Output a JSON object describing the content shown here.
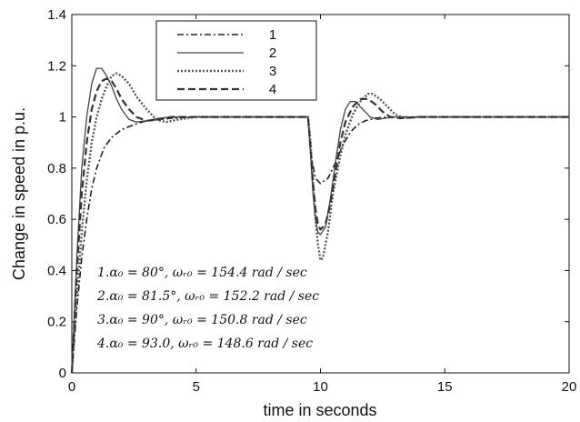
{
  "chart_data": {
    "type": "line",
    "xlabel": "time in seconds",
    "ylabel": "Change in speed in p.u.",
    "xlim": [
      0,
      20
    ],
    "ylim": [
      0,
      1.4
    ],
    "xticks": [
      "0",
      "5",
      "10",
      "15",
      "20"
    ],
    "yticks": [
      "0",
      "0.2",
      "0.4",
      "0.6",
      "0.8",
      "1",
      "1.2",
      "1.4"
    ],
    "grid": false,
    "legend_position": "top-center",
    "series": [
      {
        "name": "1",
        "style": "dash-dot",
        "color": "#222222",
        "x": [
          0,
          0.2,
          0.4,
          0.6,
          0.8,
          1.0,
          1.3,
          1.6,
          2.0,
          2.5,
          3.0,
          4.0,
          5.0,
          6.0,
          7.0,
          8.0,
          9.5,
          9.6,
          9.8,
          10.0,
          10.3,
          10.6,
          10.9,
          11.2,
          11.5,
          11.8,
          12.2,
          12.7,
          13.5,
          15,
          20
        ],
        "y": [
          0,
          0.25,
          0.45,
          0.6,
          0.72,
          0.8,
          0.88,
          0.92,
          0.95,
          0.97,
          0.985,
          0.995,
          1.0,
          1.0,
          1.0,
          1.0,
          1.0,
          0.86,
          0.76,
          0.74,
          0.76,
          0.82,
          0.89,
          0.94,
          0.97,
          0.985,
          0.995,
          1.0,
          1.0,
          1.0,
          1.0
        ]
      },
      {
        "name": "2",
        "style": "solid",
        "color": "#444444",
        "x": [
          0,
          0.2,
          0.4,
          0.6,
          0.8,
          1.0,
          1.2,
          1.4,
          1.6,
          1.8,
          2.0,
          2.3,
          2.6,
          3.0,
          3.5,
          4.0,
          5.0,
          6.0,
          7.0,
          8.0,
          9.5,
          9.6,
          9.7,
          9.8,
          9.9,
          10.0,
          10.2,
          10.4,
          10.6,
          10.8,
          11.0,
          11.2,
          11.4,
          11.6,
          11.8,
          12.0,
          12.3,
          12.6,
          13.0,
          14.0,
          15,
          20
        ],
        "y": [
          0,
          0.45,
          0.8,
          1.0,
          1.13,
          1.19,
          1.19,
          1.16,
          1.12,
          1.07,
          1.03,
          0.99,
          0.98,
          0.985,
          0.995,
          1.0,
          1.0,
          1.0,
          1.0,
          1.0,
          1.0,
          0.85,
          0.7,
          0.6,
          0.55,
          0.54,
          0.57,
          0.68,
          0.82,
          0.95,
          1.03,
          1.06,
          1.06,
          1.04,
          1.02,
          1.0,
          0.99,
          0.995,
          1.0,
          1.0,
          1.0,
          1.0
        ]
      },
      {
        "name": "3",
        "style": "dotted",
        "color": "#555555",
        "x": [
          0,
          0.2,
          0.4,
          0.6,
          0.8,
          1.0,
          1.2,
          1.4,
          1.6,
          1.8,
          2.0,
          2.3,
          2.6,
          3.0,
          3.4,
          3.8,
          4.3,
          5.0,
          6.0,
          7.0,
          8.0,
          9.5,
          9.6,
          9.7,
          9.8,
          9.9,
          10.0,
          10.1,
          10.3,
          10.5,
          10.8,
          11.0,
          11.3,
          11.6,
          11.9,
          12.1,
          12.4,
          12.7,
          13.0,
          13.4,
          14.0,
          15,
          20
        ],
        "y": [
          0,
          0.3,
          0.55,
          0.75,
          0.9,
          1.0,
          1.07,
          1.12,
          1.16,
          1.17,
          1.16,
          1.13,
          1.08,
          1.03,
          0.99,
          0.98,
          0.99,
          1.0,
          1.0,
          1.0,
          1.0,
          1.0,
          0.9,
          0.75,
          0.6,
          0.5,
          0.44,
          0.45,
          0.55,
          0.7,
          0.85,
          0.93,
          1.01,
          1.06,
          1.09,
          1.09,
          1.07,
          1.04,
          1.01,
          0.995,
          1.0,
          1.0,
          1.0
        ]
      },
      {
        "name": "4",
        "style": "dashed",
        "color": "#333333",
        "x": [
          0,
          0.2,
          0.4,
          0.6,
          0.8,
          1.0,
          1.2,
          1.4,
          1.6,
          1.8,
          2.0,
          2.3,
          2.6,
          3.0,
          3.5,
          4.0,
          5.0,
          6.0,
          7.0,
          8.0,
          9.5,
          9.6,
          9.7,
          9.8,
          9.9,
          10.0,
          10.2,
          10.4,
          10.6,
          10.8,
          11.0,
          11.3,
          11.6,
          11.9,
          12.2,
          12.5,
          12.8,
          13.2,
          14.0,
          15,
          20
        ],
        "y": [
          0,
          0.4,
          0.7,
          0.9,
          1.03,
          1.1,
          1.14,
          1.15,
          1.14,
          1.11,
          1.07,
          1.03,
          1.0,
          0.985,
          0.99,
          1.0,
          1.0,
          1.0,
          1.0,
          1.0,
          1.0,
          0.88,
          0.74,
          0.64,
          0.58,
          0.56,
          0.58,
          0.66,
          0.78,
          0.9,
          0.98,
          1.04,
          1.07,
          1.07,
          1.05,
          1.02,
          1.0,
          0.995,
          1.0,
          1.0,
          1.0
        ]
      }
    ],
    "annotations": [
      "1.α₀ = 80°, ωᵣ₀ = 154.4 rad / sec",
      "2.α₀ = 81.5°, ωᵣ₀ = 152.2 rad / sec",
      "3.α₀ = 90°, ωᵣ₀ = 150.8 rad / sec",
      "4.α₀ = 93.0, ωᵣ₀ = 148.6 rad / sec"
    ]
  }
}
